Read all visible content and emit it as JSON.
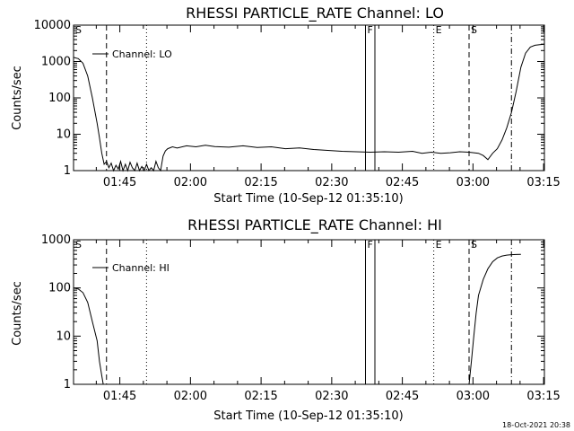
{
  "chart_data": [
    {
      "type": "line",
      "title": "RHESSI PARTICLE_RATE Channel: LO",
      "xlabel": "Start Time (10-Sep-12 01:35:10)",
      "ylabel": "Counts/sec",
      "yscale": "log",
      "ylim": [
        1,
        10000
      ],
      "yticks": [
        "1",
        "10",
        "100",
        "1000",
        "10000"
      ],
      "xticks": [
        "01:45",
        "02:00",
        "02:15",
        "02:30",
        "02:45",
        "03:00",
        "03:15"
      ],
      "legend": "Channel: LO",
      "series": [
        {
          "name": "Channel: LO",
          "x_minutes": [
            0,
            1,
            2,
            3,
            4,
            5,
            5.5,
            6,
            6.5,
            7,
            7.5,
            8,
            8.5,
            9,
            9.5,
            10,
            10.5,
            11,
            11.5,
            12,
            12.5,
            13,
            13.5,
            14,
            14.5,
            15,
            15.5,
            16,
            16.5,
            17,
            17.5,
            18,
            18.5,
            19,
            19.5,
            20,
            21,
            22,
            24,
            26,
            28,
            30,
            33,
            36,
            39,
            42,
            45,
            48,
            51,
            54,
            57,
            60,
            63,
            66,
            69,
            72,
            74,
            76,
            78,
            80,
            82,
            84,
            86,
            87,
            88,
            89,
            90,
            91,
            92,
            93,
            94,
            95,
            96,
            97,
            98,
            99,
            100
          ],
          "values": [
            1300,
            1200,
            900,
            400,
            100,
            20,
            8,
            3,
            1.5,
            1.8,
            1.2,
            1.6,
            1.0,
            1.4,
            1.1,
            1.8,
            1.0,
            1.5,
            1.0,
            1.7,
            1.2,
            1.0,
            1.6,
            1.0,
            1.3,
            1.0,
            1.5,
            1.0,
            1.2,
            1.0,
            1.8,
            1.2,
            1.0,
            2.5,
            3.5,
            4,
            4.5,
            4.2,
            4.8,
            4.5,
            5.0,
            4.6,
            4.4,
            4.8,
            4.3,
            4.5,
            4.0,
            4.2,
            3.8,
            3.6,
            3.4,
            3.3,
            3.2,
            3.3,
            3.2,
            3.4,
            3.0,
            3.2,
            3.0,
            3.1,
            3.3,
            3.2,
            3.0,
            2.6,
            2.0,
            3.0,
            4.0,
            7,
            15,
            40,
            150,
            700,
            1700,
            2500,
            2800,
            2900,
            3000
          ]
        }
      ],
      "markers": [
        {
          "label": "S",
          "x_minutes": 0,
          "style": "dashdot"
        },
        {
          "label": "",
          "x_minutes": 7,
          "style": "dashed"
        },
        {
          "label": "",
          "x_minutes": 15.5,
          "style": "dotted"
        },
        {
          "label": "F",
          "x_minutes": 62,
          "style": "solid"
        },
        {
          "label": "",
          "x_minutes": 64,
          "style": "solid"
        },
        {
          "label": "E",
          "x_minutes": 76.5,
          "style": "dotted"
        },
        {
          "label": "S",
          "x_minutes": 84,
          "style": "dashed"
        },
        {
          "label": "",
          "x_minutes": 93,
          "style": "dashdot"
        }
      ]
    },
    {
      "type": "line",
      "title": "RHESSI PARTICLE_RATE Channel: HI",
      "xlabel": "Start Time (10-Sep-12 01:35:10)",
      "ylabel": "Counts/sec",
      "yscale": "log",
      "ylim": [
        1,
        1000
      ],
      "yticks": [
        "1",
        "10",
        "100",
        "1000"
      ],
      "xticks": [
        "01:45",
        "02:00",
        "02:15",
        "02:30",
        "02:45",
        "03:00",
        "03:15"
      ],
      "legend": "Channel: HI",
      "series": [
        {
          "name": "Channel: HI",
          "x_minutes": [
            0,
            1,
            2,
            3,
            4,
            5,
            5.5,
            6,
            6.3,
            84,
            84.5,
            85,
            85.5,
            86,
            87,
            88,
            89,
            90,
            91,
            92,
            93,
            94,
            95
          ],
          "values": [
            100,
            95,
            80,
            50,
            20,
            8,
            3,
            1.5,
            1,
            1,
            3,
            10,
            30,
            70,
            150,
            250,
            350,
            420,
            460,
            480,
            490,
            495,
            500
          ]
        }
      ],
      "markers": [
        {
          "label": "S",
          "x_minutes": 0,
          "style": "dashdot"
        },
        {
          "label": "",
          "x_minutes": 7,
          "style": "dashed"
        },
        {
          "label": "",
          "x_minutes": 15.5,
          "style": "dotted"
        },
        {
          "label": "F",
          "x_minutes": 62,
          "style": "solid"
        },
        {
          "label": "",
          "x_minutes": 64,
          "style": "solid"
        },
        {
          "label": "E",
          "x_minutes": 76.5,
          "style": "dotted"
        },
        {
          "label": "S",
          "x_minutes": 84,
          "style": "dashed"
        },
        {
          "label": "",
          "x_minutes": 93,
          "style": "dashdot"
        }
      ]
    }
  ],
  "footer": {
    "timestamp": "18-Oct-2021 20:38"
  }
}
